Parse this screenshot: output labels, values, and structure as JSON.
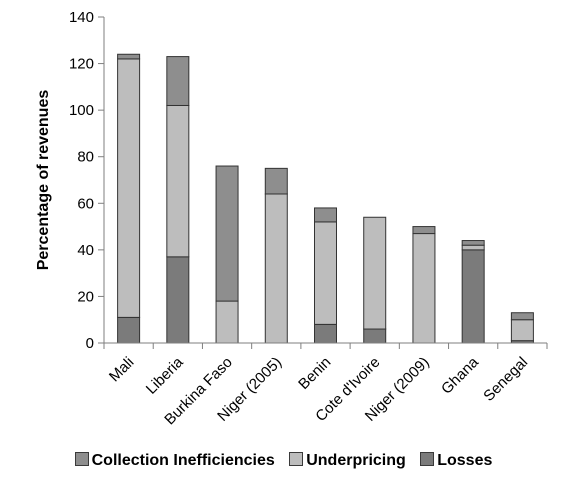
{
  "chart_data": {
    "type": "bar",
    "stacked": true,
    "ylabel": "Percentage of revenues",
    "ylim": [
      0,
      140
    ],
    "yticks": [
      0,
      20,
      40,
      60,
      80,
      100,
      120,
      140
    ],
    "grid": false,
    "legend_position": "bottom",
    "categories": [
      "Mali",
      "Liberia",
      "Burkina Faso",
      "Niger (2005)",
      "Benin",
      "Cote d'Ivoire",
      "Niger (2009)",
      "Ghana",
      "Senegal"
    ],
    "series": [
      {
        "name": "Losses",
        "color": "#7b7b7b",
        "values": [
          11,
          37,
          0,
          0,
          8,
          6,
          0,
          40,
          1
        ]
      },
      {
        "name": "Underpricing",
        "color": "#bdbdbd",
        "values": [
          111,
          65,
          18,
          64,
          44,
          48,
          47,
          2,
          9
        ]
      },
      {
        "name": "Collection Inefficiencies",
        "color": "#8e8e8e",
        "values": [
          2,
          21,
          58,
          11,
          6,
          0,
          3,
          2,
          3
        ]
      }
    ],
    "legend_order": [
      "Collection Inefficiencies",
      "Underpricing",
      "Losses"
    ]
  }
}
